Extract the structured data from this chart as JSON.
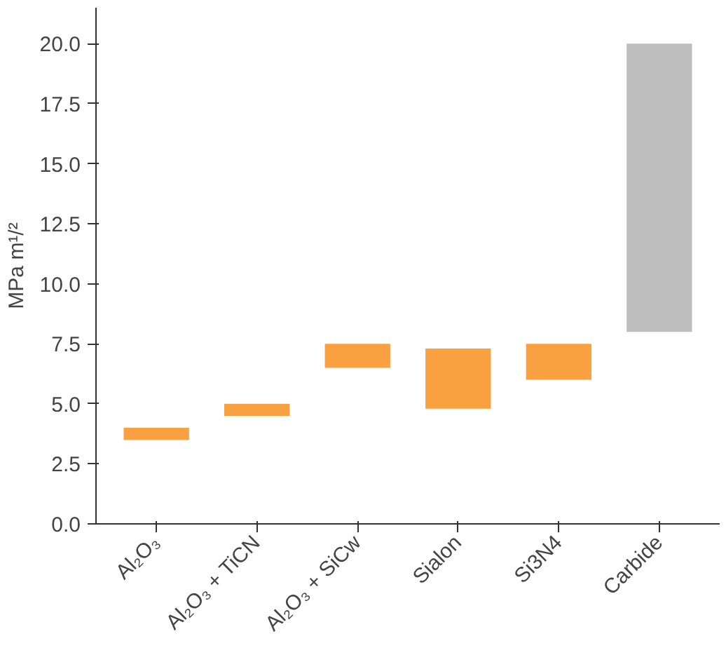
{
  "chart_data": {
    "type": "bar",
    "ylabel": "MPa m¹/²",
    "categories": [
      "Al₂O₃",
      "Al₂O₃ + TiCN",
      "Al₂O₃ + SiCw",
      "Sialon",
      "Si3N4",
      "Carbide"
    ],
    "base": [
      3.5,
      4.5,
      6.5,
      4.8,
      6.0,
      8.0
    ],
    "values": [
      0.5,
      0.5,
      1.0,
      2.5,
      1.5,
      12.0
    ],
    "colors": [
      "#f9a040",
      "#f9a040",
      "#f9a040",
      "#f9a040",
      "#f9a040",
      "#bdbdbd"
    ],
    "ylim": [
      0,
      21.5
    ],
    "yticks": [
      {
        "value": 0,
        "label": "0.0"
      },
      2.5,
      {
        "value": 5,
        "label": "5.0"
      },
      7.5,
      {
        "value": 10,
        "label": "10.0"
      },
      12.5,
      {
        "value": 15,
        "label": "15.0"
      },
      17.5,
      {
        "value": 20,
        "label": "20.0"
      }
    ],
    "grid": false
  }
}
